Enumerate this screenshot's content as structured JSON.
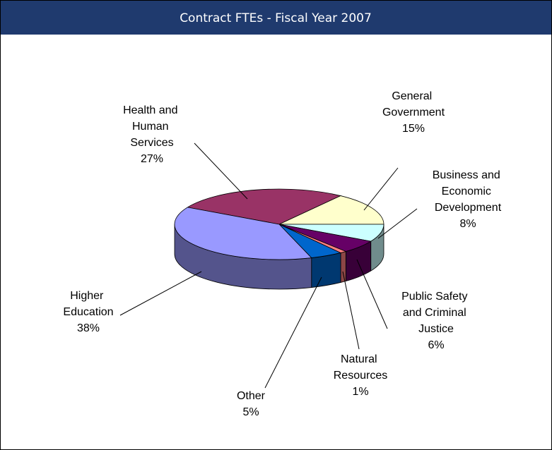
{
  "chart_data": {
    "type": "pie3d",
    "title": "Contract FTEs - Fiscal Year 2007",
    "categories": [
      "Health and Human Services",
      "General Government",
      "Business and Economic Development",
      "Public Safety and Criminal Justice",
      "Natural Resources",
      "Other",
      "Higher Education"
    ],
    "values": [
      27,
      15,
      8,
      6,
      1,
      5,
      38
    ],
    "value_labels": [
      "27%",
      "15%",
      "8%",
      "6%",
      "1%",
      "5%",
      "38%"
    ],
    "colors": [
      "#993366",
      "#ffffcc",
      "#ccffff",
      "#660066",
      "#ff8080",
      "#0066cc",
      "#9999ff"
    ]
  }
}
